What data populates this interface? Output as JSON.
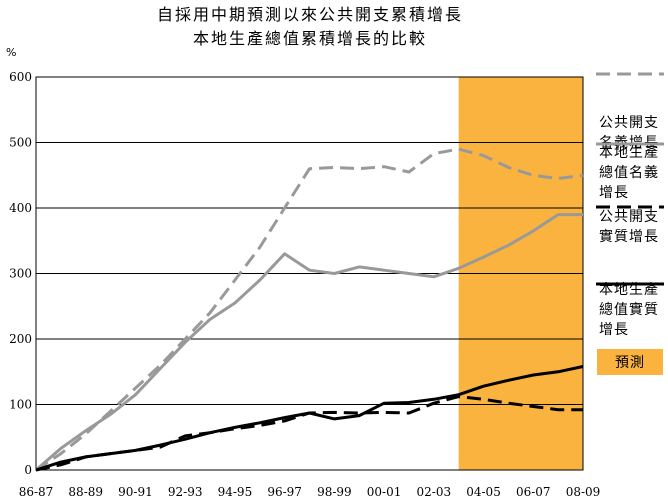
{
  "chart_data": {
    "type": "line",
    "title_lines": [
      "自採用中期預測以來公共開支累積增長",
      "本地生產總值累積增長的比較"
    ],
    "y_unit": "%",
    "ylim": [
      0,
      600
    ],
    "yticks": [
      0,
      100,
      200,
      300,
      400,
      500,
      600
    ],
    "grid": "horizontal",
    "legend_position": "right",
    "x": [
      "86-87",
      "87-88",
      "88-89",
      "89-90",
      "90-91",
      "91-92",
      "92-93",
      "93-94",
      "94-95",
      "95-96",
      "96-97",
      "97-98",
      "98-99",
      "99-00",
      "00-01",
      "01-02",
      "02-03",
      "03-04",
      "04-05",
      "05-06",
      "06-07",
      "07-08",
      "08-09"
    ],
    "x_tick_labels": [
      "86-87",
      "88-89",
      "90-91",
      "92-93",
      "94-95",
      "96-97",
      "98-99",
      "00-01",
      "02-03",
      "04-05",
      "06-07",
      "08-09"
    ],
    "forecast": {
      "label": "預測",
      "from": "03-04",
      "to": "08-09",
      "color": "#FBB33F"
    },
    "series": [
      {
        "name": "公共開支名義增長",
        "name_lines": [
          "公共開支",
          "名義增長"
        ],
        "color": "#999999",
        "dash": "dashed",
        "values": [
          0,
          25,
          55,
          90,
          125,
          160,
          200,
          240,
          290,
          340,
          400,
          460,
          462,
          460,
          463,
          455,
          483,
          490,
          480,
          462,
          450,
          445,
          450
        ]
      },
      {
        "name": "本地生產總值名義增長",
        "name_lines": [
          "本地生產",
          "總值名義",
          "增長"
        ],
        "color": "#999999",
        "dash": "solid",
        "values": [
          0,
          33,
          60,
          85,
          115,
          155,
          195,
          230,
          255,
          290,
          330,
          305,
          300,
          310,
          305,
          300,
          295,
          308,
          325,
          343,
          365,
          390,
          390
        ]
      },
      {
        "name": "公共開支實質增長",
        "name_lines": [
          "公共開支",
          "實質增長"
        ],
        "color": "#000000",
        "dash": "dashed",
        "values": [
          0,
          8,
          20,
          25,
          30,
          35,
          52,
          57,
          63,
          68,
          75,
          87,
          88,
          87,
          88,
          87,
          102,
          112,
          108,
          102,
          97,
          92,
          92
        ]
      },
      {
        "name": "本地生產總值實質增長",
        "name_lines": [
          "本地生產",
          "總值實質",
          "增長"
        ],
        "color": "#000000",
        "dash": "solid",
        "values": [
          0,
          12,
          20,
          25,
          30,
          38,
          47,
          57,
          65,
          72,
          80,
          87,
          78,
          83,
          102,
          103,
          108,
          115,
          128,
          137,
          145,
          150,
          158
        ]
      }
    ]
  }
}
